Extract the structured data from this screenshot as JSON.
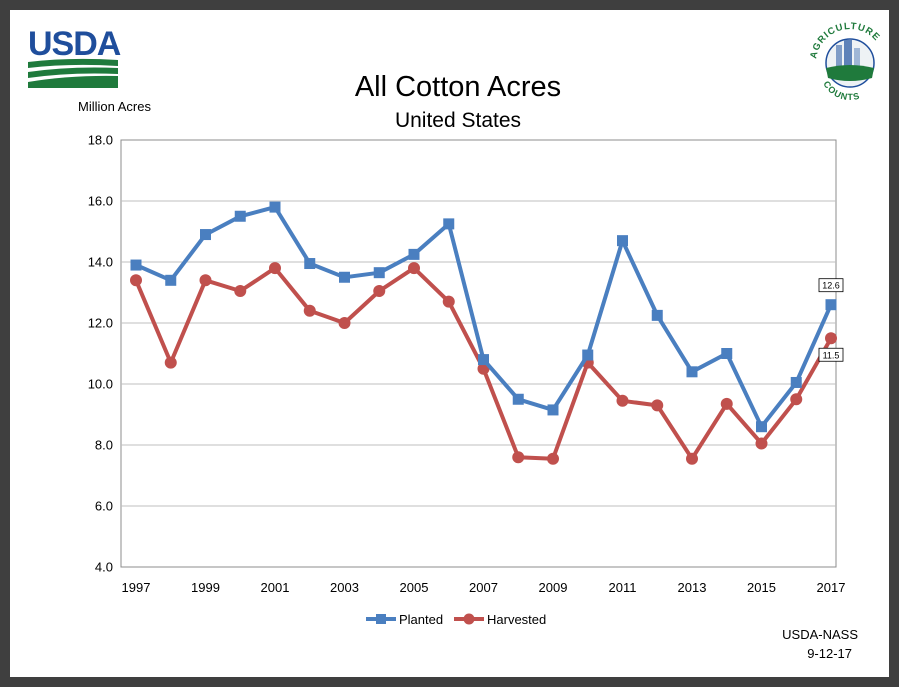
{
  "logos": {
    "usda": "USDA",
    "agcounts_top": "AGRICULTURE",
    "agcounts_bottom": "COUNTS"
  },
  "colors": {
    "planted": "#4a7fc0",
    "harvested": "#c0504d",
    "usda_blue": "#1f4e9c",
    "usda_green": "#1f7a3c",
    "grid": "#bfbfbf",
    "frame": "#3f3f3f"
  },
  "chart_data": {
    "type": "line",
    "title": "All Cotton Acres",
    "subtitle": "United States",
    "ylabel": "Million Acres",
    "xlabel": "",
    "ylim": [
      4.0,
      18.0
    ],
    "yticks": [
      "4.0",
      "6.0",
      "8.0",
      "10.0",
      "12.0",
      "14.0",
      "16.0",
      "18.0"
    ],
    "x": [
      1997,
      1998,
      1999,
      2000,
      2001,
      2002,
      2003,
      2004,
      2005,
      2006,
      2007,
      2008,
      2009,
      2010,
      2011,
      2012,
      2013,
      2014,
      2015,
      2016,
      2017
    ],
    "xticks": [
      "1997",
      "1999",
      "2001",
      "2003",
      "2005",
      "2007",
      "2009",
      "2011",
      "2013",
      "2015",
      "2017"
    ],
    "grid": true,
    "legend_position": "bottom",
    "series": [
      {
        "name": "Planted",
        "marker": "square",
        "values": [
          13.9,
          13.4,
          14.9,
          15.5,
          15.8,
          13.95,
          13.5,
          13.65,
          14.25,
          15.25,
          10.8,
          9.5,
          9.15,
          10.95,
          14.7,
          12.25,
          10.4,
          11.0,
          8.6,
          10.05,
          12.6
        ]
      },
      {
        "name": "Harvested",
        "marker": "circle",
        "values": [
          13.4,
          10.7,
          13.4,
          13.05,
          13.8,
          12.4,
          12.0,
          13.05,
          13.8,
          12.7,
          10.5,
          7.6,
          7.55,
          10.7,
          9.45,
          9.3,
          7.55,
          9.35,
          8.05,
          9.5,
          11.5
        ]
      }
    ],
    "annotations": [
      "12.6",
      "11.5"
    ]
  },
  "source": {
    "line1": "USDA-NASS",
    "line2": "9-12-17"
  }
}
